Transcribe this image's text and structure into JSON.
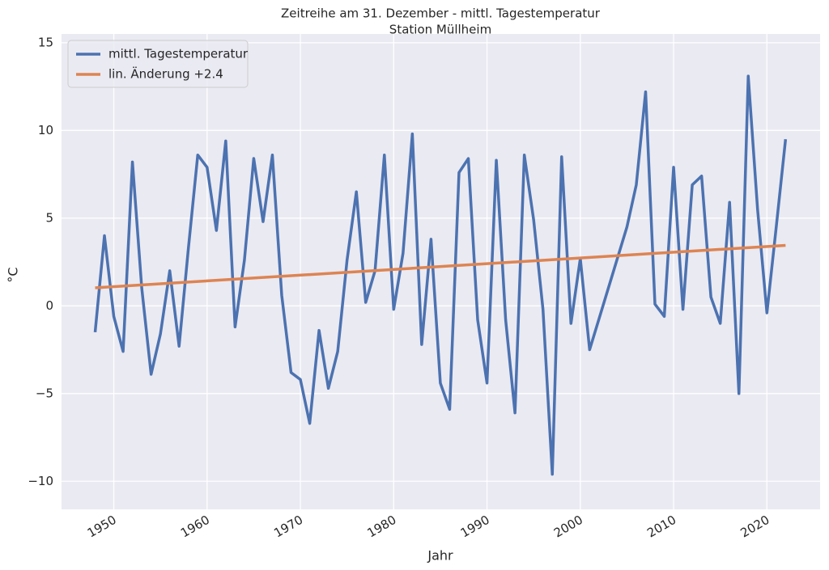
{
  "chart_data": {
    "type": "line",
    "title": "Zeitreihe am 31. Dezember - mittl. Tagestemperatur",
    "subtitle": "Station Müllheim",
    "xlabel": "Jahr",
    "ylabel": "°C",
    "grid": true,
    "legend": "upper left",
    "xlim": [
      1944.4,
      2025.7
    ],
    "ylim": [
      -11.6,
      15.5
    ],
    "xticks": [
      1950,
      1960,
      1970,
      1980,
      1990,
      2000,
      2010,
      2020
    ],
    "yticks": [
      {
        "value": -10,
        "label": "−10"
      },
      {
        "value": -5,
        "label": "−5"
      },
      0,
      5,
      10,
      15
    ],
    "series": [
      {
        "name": "mittl. Tagestemperatur",
        "color": "#4c72b0",
        "x": [
          1948,
          1949,
          1950,
          1951,
          1952,
          1953,
          1954,
          1955,
          1956,
          1957,
          1958,
          1959,
          1960,
          1961,
          1962,
          1963,
          1964,
          1965,
          1966,
          1967,
          1968,
          1969,
          1970,
          1971,
          1972,
          1973,
          1974,
          1975,
          1976,
          1977,
          1978,
          1979,
          1980,
          1981,
          1982,
          1983,
          1984,
          1985,
          1986,
          1987,
          1988,
          1989,
          1990,
          1991,
          1992,
          1993,
          1994,
          1995,
          1996,
          1997,
          1998,
          1999,
          2000,
          2001,
          2005,
          2006,
          2007,
          2008,
          2009,
          2010,
          2011,
          2012,
          2013,
          2014,
          2015,
          2016,
          2017,
          2018,
          2019,
          2020,
          2021,
          2022
        ],
        "values": [
          -1.5,
          4.0,
          -0.6,
          -2.6,
          8.2,
          1.0,
          -3.9,
          -1.6,
          2.0,
          -2.3,
          3.3,
          8.6,
          7.9,
          4.3,
          9.4,
          -1.2,
          2.6,
          8.4,
          4.8,
          8.6,
          0.6,
          -3.8,
          -4.2,
          -6.7,
          -1.4,
          -4.7,
          -2.6,
          2.6,
          6.5,
          0.2,
          2.0,
          8.6,
          -0.2,
          3.0,
          9.8,
          -2.2,
          3.8,
          -4.4,
          -5.9,
          7.6,
          8.4,
          -0.8,
          -4.4,
          8.3,
          -0.8,
          -6.1,
          8.6,
          4.9,
          -0.2,
          -9.6,
          8.5,
          -1.0,
          2.7,
          -2.5,
          4.5,
          6.9,
          12.2,
          0.1,
          -0.6,
          7.9,
          -0.2,
          6.9,
          7.4,
          0.5,
          -1.0,
          5.9,
          -5.0,
          13.1,
          5.5,
          -0.4,
          4.5,
          9.5
        ]
      },
      {
        "name": "lin. Änderung +2.4",
        "color": "#dd8452",
        "x": [
          1948,
          2022
        ],
        "values": [
          1.03,
          3.45
        ]
      }
    ]
  }
}
